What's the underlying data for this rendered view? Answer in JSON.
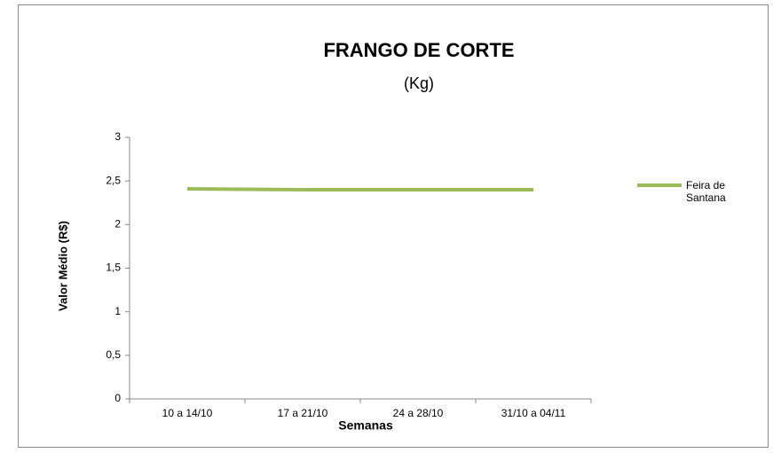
{
  "chart_data": {
    "type": "line",
    "title": "FRANGO DE CORTE",
    "subtitle": "(Kg)",
    "x_label": "Semanas",
    "y_label": "Valor Médio (R$)",
    "categories": [
      "10 a 14/10",
      "17 a 21/10",
      "24 a 28/10",
      "31/10 a 04/11"
    ],
    "series": [
      {
        "name": "Feira de Santana",
        "color": "#9bbb59",
        "values": [
          2.41,
          2.4,
          2.4,
          2.4
        ]
      }
    ],
    "ylim": [
      0,
      3
    ],
    "yticks": [
      0,
      {
        "value": 0.5,
        "label": "0,5"
      },
      1,
      {
        "value": 1.5,
        "label": "1,5"
      },
      2,
      {
        "value": 2.5,
        "label": "2,5"
      },
      3
    ],
    "grid": false,
    "legend": "right"
  }
}
